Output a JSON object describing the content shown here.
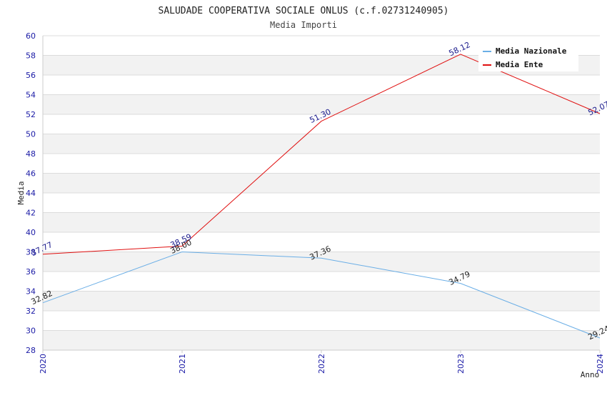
{
  "chart_data": {
    "type": "line",
    "title": "SALUDADE COOPERATIVA SOCIALE ONLUS (c.f.02731240905)",
    "subtitle": "Media Importi",
    "xlabel": "Anno",
    "ylabel": "Media",
    "x": [
      "2020",
      "2021",
      "2022",
      "2023",
      "2024"
    ],
    "ylim": [
      28,
      60
    ],
    "ytick_step": 2,
    "grid": true,
    "legend_position": "top-right",
    "series": [
      {
        "name": "Media Nazionale",
        "color": "#6aaee6",
        "label_color": "#222222",
        "values": [
          32.82,
          38.0,
          37.36,
          34.79,
          29.24
        ],
        "labels": [
          "32.82",
          "38.00",
          "37.36",
          "34.79",
          "29.24"
        ]
      },
      {
        "name": "Media Ente",
        "color": "#e01010",
        "label_color": "#1a1a8c",
        "values": [
          37.77,
          38.59,
          51.3,
          58.12,
          52.07
        ],
        "labels": [
          "37.77",
          "38.59",
          "51.30",
          "58.12",
          "52.07"
        ]
      }
    ]
  }
}
